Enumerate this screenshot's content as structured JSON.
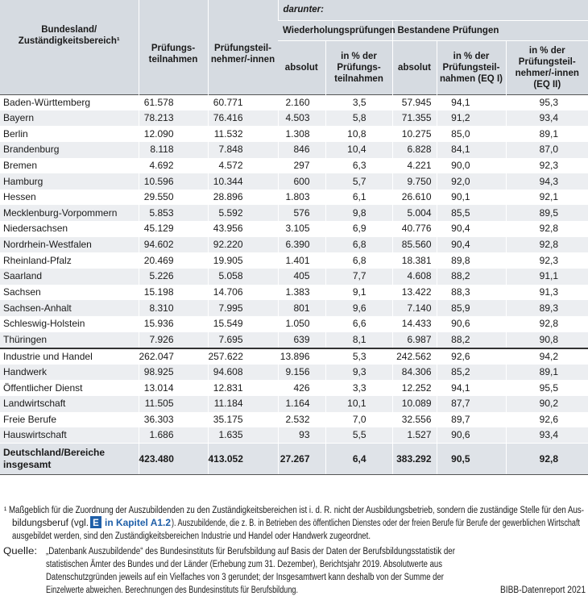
{
  "table": {
    "header": {
      "region": [
        "Bundesland/",
        "Zuständigkeitsbereich¹"
      ],
      "participations": [
        "Prüfungs-",
        "teilnahmen"
      ],
      "participants": [
        "Prüfungsteil-",
        "nehmer/-innen"
      ],
      "among_them": "darunter:",
      "repeat_exams": "Wiederholungsprüfungen",
      "passed_exams": "Bestandene Prüfungen",
      "repeat_abs": [
        "absolut"
      ],
      "repeat_pct": [
        "in % der",
        "Prüfungs-",
        "teilnahmen"
      ],
      "passed_abs": [
        "absolut"
      ],
      "passed_pct1": [
        "in % der",
        "Prüfungsteil-",
        "nahmen (EQ I)"
      ],
      "passed_pct2": [
        "in % der",
        "Prüfungsteil-",
        "nehmer/-innen",
        "(EQ II)"
      ]
    },
    "states": [
      [
        "Baden-Württemberg",
        "61.578",
        "60.771",
        "2.160",
        "3,5",
        "57.945",
        "94,1",
        "95,3"
      ],
      [
        "Bayern",
        "78.213",
        "76.416",
        "4.503",
        "5,8",
        "71.355",
        "91,2",
        "93,4"
      ],
      [
        "Berlin",
        "12.090",
        "11.532",
        "1.308",
        "10,8",
        "10.275",
        "85,0",
        "89,1"
      ],
      [
        "Brandenburg",
        "8.118",
        "7.848",
        "846",
        "10,4",
        "6.828",
        "84,1",
        "87,0"
      ],
      [
        "Bremen",
        "4.692",
        "4.572",
        "297",
        "6,3",
        "4.221",
        "90,0",
        "92,3"
      ],
      [
        "Hamburg",
        "10.596",
        "10.344",
        "600",
        "5,7",
        "9.750",
        "92,0",
        "94,3"
      ],
      [
        "Hessen",
        "29.550",
        "28.896",
        "1.803",
        "6,1",
        "26.610",
        "90,1",
        "92,1"
      ],
      [
        "Mecklenburg-Vorpommern",
        "5.853",
        "5.592",
        "576",
        "9,8",
        "5.004",
        "85,5",
        "89,5"
      ],
      [
        "Niedersachsen",
        "45.129",
        "43.956",
        "3.105",
        "6,9",
        "40.776",
        "90,4",
        "92,8"
      ],
      [
        "Nordrhein-Westfalen",
        "94.602",
        "92.220",
        "6.390",
        "6,8",
        "85.560",
        "90,4",
        "92,8"
      ],
      [
        "Rheinland-Pfalz",
        "20.469",
        "19.905",
        "1.401",
        "6,8",
        "18.381",
        "89,8",
        "92,3"
      ],
      [
        "Saarland",
        "5.226",
        "5.058",
        "405",
        "7,7",
        "4.608",
        "88,2",
        "91,1"
      ],
      [
        "Sachsen",
        "15.198",
        "14.706",
        "1.383",
        "9,1",
        "13.422",
        "88,3",
        "91,3"
      ],
      [
        "Sachsen-Anhalt",
        "8.310",
        "7.995",
        "801",
        "9,6",
        "7.140",
        "85,9",
        "89,3"
      ],
      [
        "Schleswig-Holstein",
        "15.936",
        "15.549",
        "1.050",
        "6,6",
        "14.433",
        "90,6",
        "92,8"
      ],
      [
        "Thüringen",
        "7.926",
        "7.695",
        "639",
        "8,1",
        "6.987",
        "88,2",
        "90,8"
      ]
    ],
    "sectors": [
      [
        "Industrie und Handel",
        "262.047",
        "257.622",
        "13.896",
        "5,3",
        "242.562",
        "92,6",
        "94,2"
      ],
      [
        "Handwerk",
        "98.925",
        "94.608",
        "9.156",
        "9,3",
        "84.306",
        "85,2",
        "89,1"
      ],
      [
        "Öffentlicher Dienst",
        "13.014",
        "12.831",
        "426",
        "3,3",
        "12.252",
        "94,1",
        "95,5"
      ],
      [
        "Landwirtschaft",
        "11.505",
        "11.184",
        "1.164",
        "10,1",
        "10.089",
        "87,7",
        "90,2"
      ],
      [
        "Freie Berufe",
        "36.303",
        "35.175",
        "2.532",
        "7,0",
        "32.556",
        "89,7",
        "92,6"
      ],
      [
        "Hauswirtschaft",
        "1.686",
        "1.635",
        "93",
        "5,5",
        "1.527",
        "90,6",
        "93,4"
      ]
    ],
    "total": [
      [
        "Deutschland/Bereiche",
        "insgesamt"
      ],
      "423.480",
      "413.052",
      "27.267",
      "6,4",
      "383.292",
      "90,5",
      "92,8"
    ]
  },
  "footnote": {
    "line1": "¹ Maßgeblich für die Zuordnung der Auszubildenden zu den Zuständigkeitsbereichen ist i. d. R. nicht der Ausbildungsbetrieb, sondern die zuständige Stelle für den Aus-",
    "line2_before": "bildungsberuf (vgl.",
    "icon": "E",
    "link": "in Kapitel A1.2",
    "line2_after": "). Auszubildende, die z. B. in Betrieben des öffentlichen Dienstes oder der freien Berufe für Berufe der gewerblichen Wirtschaft",
    "line3": "ausgebildet werden, sind den Zuständigkeitsbereichen Industrie und Handel oder Handwerk zugeordnet."
  },
  "source": {
    "label": "Quelle:",
    "lines": [
      "„Datenbank Auszubildende“ des Bundesinstituts für Berufsbildung auf Basis der Daten der Berufsbildungsstatistik der",
      "statistischen Ämter des Bundes und der Länder (Erhebung zum 31. Dezember), Berichtsjahr 2019. Absolutwerte aus",
      "Datenschutzgründen jeweils auf ein Vielfaches von 3 gerundet; der Insgesamtwert kann deshalb von der Summe der",
      "Einzelwerte abweichen. Berechnungen des Bundesinstituts für Berufsbildung."
    ]
  },
  "credit": "BIBB-Datenreport 2021"
}
